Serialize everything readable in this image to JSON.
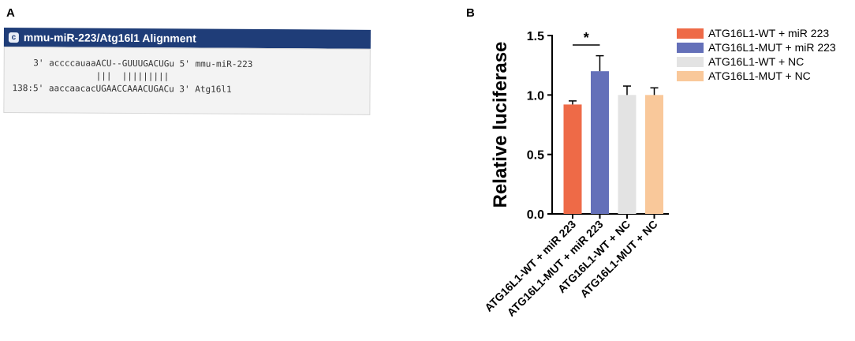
{
  "panels": {
    "a_label": "A",
    "b_label": "B"
  },
  "alignment": {
    "title": "mmu-miR-223/Atg16l1 Alignment",
    "icon_glyph": "c",
    "lines": [
      "    3' accccauaaACU--GUUUGACUGu 5' mmu-miR-223",
      "                |||  |||||||||",
      "138:5' aaccaacacUGAACCAAACUGACu 3' Atg16l1"
    ]
  },
  "colors": {
    "title_bar": "#1f3d78",
    "wt_mir": "#ee6a47",
    "mut_mir": "#6470b9",
    "wt_nc": "#e3e3e3",
    "mut_nc": "#f9c89a"
  },
  "chart_data": {
    "type": "bar",
    "categories": [
      "ATG16L1-WT + miR 223",
      "ATG16L1-MUT + miR 223",
      "ATG16L1-WT + NC",
      "ATG16L1-MUT + NC"
    ],
    "values": [
      0.92,
      1.2,
      1.0,
      1.0
    ],
    "errors": [
      0.03,
      0.13,
      0.075,
      0.06
    ],
    "colors": [
      "#ee6a47",
      "#6470b9",
      "#e3e3e3",
      "#f9c89a"
    ],
    "title": "",
    "xlabel": "",
    "ylabel": "Relative luciferase",
    "ylim": [
      0,
      1.5
    ],
    "yticks": [
      0.0,
      0.5,
      1.0,
      1.5
    ],
    "ytick_labels": [
      "0.0",
      "0.5",
      "1.0",
      "1.5"
    ],
    "legend_position": "right",
    "legend": [
      "ATG16L1-WT + miR 223",
      "ATG16L1-MUT + miR 223",
      "ATG16L1-WT + NC",
      "ATG16L1-MUT + NC"
    ],
    "annotations": [
      {
        "text": "*",
        "between": [
          0,
          1
        ]
      }
    ]
  }
}
